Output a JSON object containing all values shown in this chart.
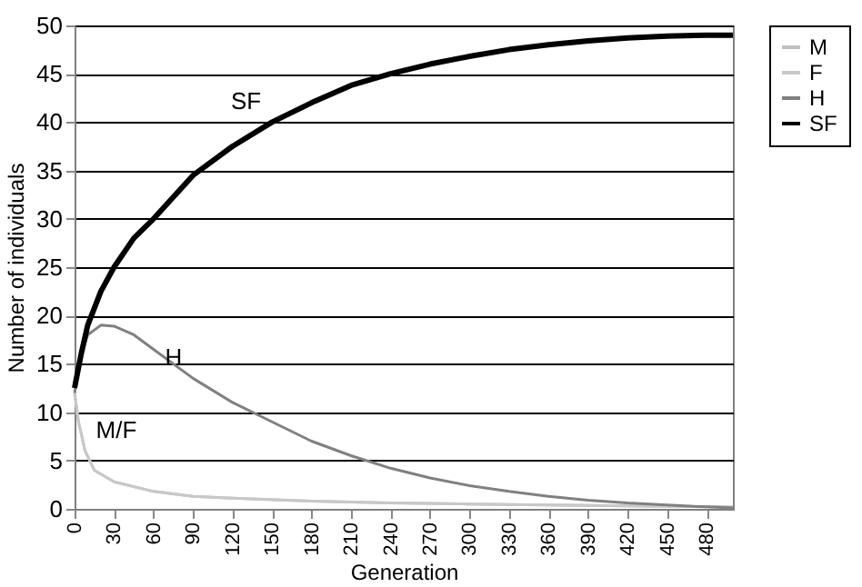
{
  "chart_data": {
    "type": "line",
    "xlabel": "Generation",
    "ylabel": "Number of individuals",
    "xlim": [
      0,
      500
    ],
    "xticks": [
      0,
      30,
      60,
      90,
      120,
      150,
      180,
      210,
      240,
      270,
      300,
      330,
      360,
      390,
      420,
      450,
      480
    ],
    "ylim": [
      0,
      50
    ],
    "yticks": [
      0,
      5,
      10,
      15,
      20,
      25,
      30,
      35,
      40,
      45,
      50
    ],
    "grid": "y",
    "legend": "right",
    "marker": "none",
    "line_style": "solid",
    "series": [
      {
        "name": "M",
        "color": "#c0c0c0",
        "x": [
          0,
          3,
          8,
          15,
          30,
          60,
          90,
          120,
          180,
          240,
          300,
          360,
          420,
          500
        ],
        "values": [
          12,
          9,
          6,
          4,
          2.8,
          1.8,
          1.3,
          1.1,
          0.8,
          0.6,
          0.5,
          0.4,
          0.3,
          0.2
        ]
      },
      {
        "name": "F",
        "color": "#c8c8c8",
        "x": [
          0,
          3,
          8,
          15,
          30,
          60,
          90,
          120,
          180,
          240,
          300,
          360,
          420,
          500
        ],
        "values": [
          12,
          9,
          6,
          4,
          2.8,
          1.8,
          1.3,
          1.1,
          0.8,
          0.6,
          0.5,
          0.4,
          0.3,
          0.2
        ]
      },
      {
        "name": "H",
        "color": "#808080",
        "x": [
          0,
          5,
          10,
          20,
          30,
          45,
          60,
          90,
          120,
          150,
          180,
          210,
          240,
          270,
          300,
          330,
          360,
          390,
          420,
          450,
          480,
          500
        ],
        "values": [
          12,
          16,
          18,
          19,
          18.9,
          18,
          16.5,
          13.5,
          11,
          9,
          7,
          5.5,
          4.2,
          3.2,
          2.4,
          1.8,
          1.3,
          0.9,
          0.6,
          0.4,
          0.2,
          0.1
        ]
      },
      {
        "name": "SF",
        "color": "#000000",
        "x": [
          0,
          5,
          10,
          20,
          30,
          45,
          60,
          90,
          120,
          150,
          180,
          210,
          240,
          270,
          300,
          330,
          360,
          390,
          420,
          450,
          480,
          500
        ],
        "values": [
          12.5,
          16,
          19,
          22.5,
          25,
          28,
          30,
          34.5,
          37.5,
          40,
          42,
          43.8,
          45,
          46,
          46.8,
          47.5,
          48,
          48.4,
          48.7,
          48.9,
          49,
          49
        ]
      }
    ],
    "annotations": [
      {
        "text": "SF",
        "x": 150,
        "y": 40
      },
      {
        "text": "H",
        "x": 90,
        "y": 13.5
      },
      {
        "text": "M/F",
        "x": 8,
        "y": 6
      }
    ]
  }
}
